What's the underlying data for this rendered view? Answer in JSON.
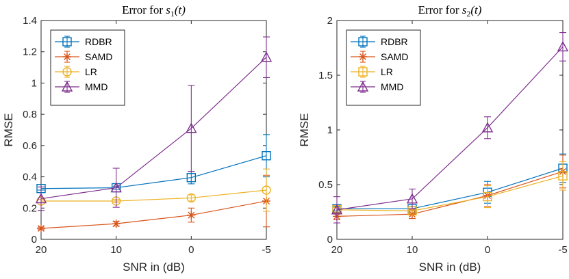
{
  "chart_data": [
    {
      "type": "line",
      "title_prefix": "Error for ",
      "title_var": "s",
      "title_sub": "1",
      "title_suffix": "(t)",
      "xlabel": "SNR in (dB)",
      "ylabel": "RMSE",
      "x": [
        20,
        10,
        0,
        -5
      ],
      "xticks": [
        "20",
        "10",
        "0",
        "-5"
      ],
      "ylim": [
        0,
        1.4
      ],
      "yticks": [
        "0",
        "0.2",
        "0.4",
        "0.6",
        "0.8",
        "1",
        "1.2",
        "1.4"
      ],
      "yticks_values": [
        0,
        0.2,
        0.4,
        0.6,
        0.8,
        1.0,
        1.2,
        1.4
      ],
      "legend_position": "top-left",
      "series": [
        {
          "name": "RDBR",
          "color": "#0072BD",
          "marker": "square",
          "values": [
            0.325,
            0.33,
            0.395,
            0.535
          ],
          "errors": [
            0.01,
            0.01,
            0.04,
            0.135
          ]
        },
        {
          "name": "SAMD",
          "color": "#D95319",
          "marker": "asterisk",
          "values": [
            0.07,
            0.1,
            0.155,
            0.245
          ],
          "errors": [
            0.008,
            0.015,
            0.045,
            0.165
          ]
        },
        {
          "name": "LR",
          "color": "#EDB120",
          "marker": "circle",
          "values": [
            0.245,
            0.245,
            0.265,
            0.315
          ],
          "errors": [
            0.01,
            0.01,
            0.02,
            0.135
          ]
        },
        {
          "name": "MMD",
          "color": "#7E2F8E",
          "marker": "triangle",
          "values": [
            0.26,
            0.33,
            0.71,
            1.165
          ],
          "errors": [
            0.075,
            0.125,
            0.275,
            0.13
          ]
        }
      ]
    },
    {
      "type": "line",
      "title_prefix": "Error for ",
      "title_var": "s",
      "title_sub": "2",
      "title_suffix": "(t)",
      "xlabel": "SNR in (dB)",
      "ylabel": "RMSE",
      "x": [
        20,
        10,
        0,
        -5
      ],
      "xticks": [
        "20",
        "10",
        "0",
        "-5"
      ],
      "ylim": [
        0,
        2
      ],
      "yticks": [
        "0",
        "0.5",
        "1",
        "1.5",
        "2"
      ],
      "yticks_values": [
        0,
        0.5,
        1.0,
        1.5,
        2.0
      ],
      "legend_position": "top-left",
      "series": [
        {
          "name": "RDBR",
          "color": "#0072BD",
          "marker": "square",
          "values": [
            0.28,
            0.28,
            0.43,
            0.65
          ],
          "errors": [
            0.02,
            0.02,
            0.1,
            0.13
          ]
        },
        {
          "name": "SAMD",
          "color": "#D95319",
          "marker": "asterisk",
          "values": [
            0.21,
            0.23,
            0.4,
            0.62
          ],
          "errors": [
            0.03,
            0.04,
            0.1,
            0.15
          ]
        },
        {
          "name": "LR",
          "color": "#EDB120",
          "marker": "square",
          "values": [
            0.27,
            0.26,
            0.39,
            0.58
          ],
          "errors": [
            0.02,
            0.02,
            0.1,
            0.13
          ]
        },
        {
          "name": "MMD",
          "color": "#7E2F8E",
          "marker": "triangle",
          "values": [
            0.27,
            0.37,
            1.02,
            1.76
          ],
          "errors": [
            0.12,
            0.09,
            0.1,
            0.13
          ]
        }
      ]
    }
  ]
}
